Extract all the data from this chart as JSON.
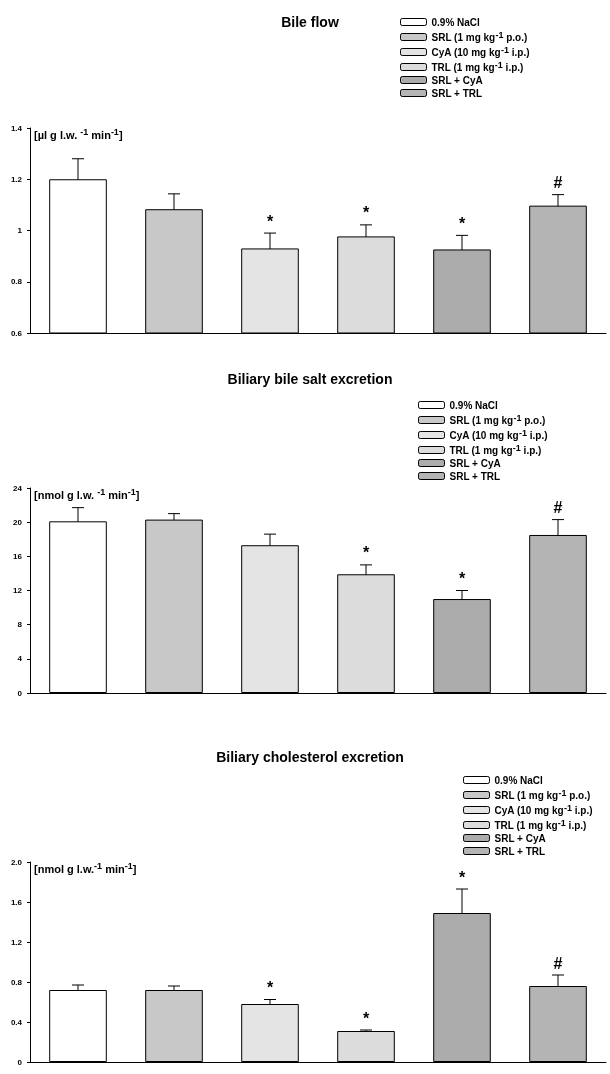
{
  "chart_data": [
    {
      "type": "bar",
      "title": "Bile flow",
      "ylabel": "[µl g l.w. $^{-1}$ min$^{-1}$]",
      "categories": [
        null,
        null,
        null,
        null,
        null,
        null
      ],
      "ylim": [
        0.6,
        1.4
      ],
      "yticks": [
        0.6,
        0.8,
        1.0,
        1.2,
        1.4
      ],
      "grid": false,
      "legend": "top right",
      "series": [
        {
          "name": "0.9% NaCl",
          "color": "#ffffff",
          "values": [
            1.2,
            null,
            null,
            null,
            null,
            null
          ],
          "errors": [
            0.08,
            null,
            null,
            null,
            null,
            null
          ]
        },
        {
          "name": "SRL (1 mg kg$^{-1}$ p.o.)",
          "color": "#c8c8c8",
          "values": [
            null,
            1.083,
            null,
            null,
            null,
            null
          ],
          "errors": [
            null,
            0.06,
            null,
            null,
            null,
            null
          ]
        },
        {
          "name": "CyA (10 mg kg$^{-1}$ i.p.)",
          "color": "#e4e4e4",
          "values": [
            null,
            null,
            0.93,
            null,
            null,
            null
          ],
          "errors": [
            null,
            null,
            0.06,
            null,
            null,
            null
          ],
          "value_labels": [
            null,
            null,
            "*",
            null,
            null,
            null
          ]
        },
        {
          "name": "TRL (1 mg kg$^{-1}$ i.p.)",
          "color": "#dcdcdc",
          "values": [
            null,
            null,
            null,
            0.977,
            null,
            null
          ],
          "errors": [
            null,
            null,
            null,
            0.045,
            null,
            null
          ],
          "value_labels": [
            null,
            null,
            null,
            "*",
            null,
            null
          ]
        },
        {
          "name": "SRL + CyA",
          "color": "#acacac",
          "values": [
            null,
            null,
            null,
            null,
            0.926,
            null
          ],
          "errors": [
            null,
            null,
            null,
            null,
            0.055,
            null
          ],
          "value_labels": [
            null,
            null,
            null,
            null,
            "*",
            null
          ]
        },
        {
          "name": "SRL + TRL",
          "color": "#b4b4b4",
          "values": [
            null,
            null,
            null,
            null,
            null,
            1.097
          ],
          "errors": [
            null,
            null,
            null,
            null,
            null,
            0.043
          ],
          "value_labels": [
            null,
            null,
            null,
            null,
            null,
            "#"
          ]
        }
      ]
    },
    {
      "type": "bar",
      "title": "Biliary bile salt excretion",
      "ylabel": "[nmol g l.w. $^{-1}$ min$^{-1}$]",
      "categories": [
        null,
        null,
        null,
        null,
        null,
        null
      ],
      "ylim": [
        0,
        24
      ],
      "yticks": [
        0,
        4,
        8,
        12,
        16,
        20,
        24
      ],
      "grid": false,
      "legend": "top right",
      "series": [
        {
          "name": "0.9% NaCl",
          "color": "#ffffff",
          "values": [
            20.1,
            null,
            null,
            null,
            null,
            null
          ],
          "errors": [
            1.6,
            null,
            null,
            null,
            null,
            null
          ]
        },
        {
          "name": "SRL (1 mg kg$^{-1}$ p.o.)",
          "color": "#c8c8c8",
          "values": [
            null,
            20.3,
            null,
            null,
            null,
            null
          ],
          "errors": [
            null,
            0.7,
            null,
            null,
            null,
            null
          ]
        },
        {
          "name": "CyA (10 mg kg$^{-1}$ i.p.)",
          "color": "#e4e4e4",
          "values": [
            null,
            null,
            17.3,
            null,
            null,
            null
          ],
          "errors": [
            null,
            null,
            1.3,
            null,
            null,
            null
          ]
        },
        {
          "name": "TRL (1 mg kg$^{-1}$ i.p.)",
          "color": "#dcdcdc",
          "values": [
            null,
            null,
            null,
            13.9,
            null,
            null
          ],
          "errors": [
            null,
            null,
            null,
            1.1,
            null,
            null
          ],
          "value_labels": [
            null,
            null,
            null,
            "*",
            null,
            null
          ]
        },
        {
          "name": "SRL + CyA",
          "color": "#acacac",
          "values": [
            null,
            null,
            null,
            null,
            11.0,
            null
          ],
          "errors": [
            null,
            null,
            null,
            null,
            1.0,
            null
          ],
          "value_labels": [
            null,
            null,
            null,
            null,
            "*",
            null
          ]
        },
        {
          "name": "SRL + TRL",
          "color": "#b4b4b4",
          "values": [
            null,
            null,
            null,
            null,
            null,
            18.5
          ],
          "errors": [
            null,
            null,
            null,
            null,
            null,
            1.8
          ],
          "value_labels": [
            null,
            null,
            null,
            null,
            null,
            "#"
          ]
        }
      ]
    },
    {
      "type": "bar",
      "title": "Biliary cholesterol excretion",
      "ylabel": "[nmol g l.w.$^{-1}$ min$^{-1}$]",
      "categories": [
        null,
        null,
        null,
        null,
        null,
        null
      ],
      "ylim": [
        0,
        2.0
      ],
      "yticks": [
        0,
        0.4,
        0.8,
        1.2,
        1.6,
        {
          "value": 2.0,
          "label": "2.0"
        }
      ],
      "grid": false,
      "legend": "top right",
      "series": [
        {
          "name": "0.9% NaCl",
          "color": "#ffffff",
          "values": [
            0.72,
            null,
            null,
            null,
            null,
            null
          ],
          "errors": [
            0.05,
            null,
            null,
            null,
            null,
            null
          ]
        },
        {
          "name": "SRL (1 mg kg$^{-1}$ p.o.)",
          "color": "#c8c8c8",
          "values": [
            null,
            0.72,
            null,
            null,
            null,
            null
          ],
          "errors": [
            null,
            0.04,
            null,
            null,
            null,
            null
          ]
        },
        {
          "name": "CyA (10 mg kg$^{-1}$ i.p.)",
          "color": "#e4e4e4",
          "values": [
            null,
            null,
            0.58,
            null,
            null,
            null
          ],
          "errors": [
            null,
            null,
            0.045,
            null,
            null,
            null
          ],
          "value_labels": [
            null,
            null,
            "*",
            null,
            null,
            null
          ]
        },
        {
          "name": "TRL (1 mg kg$^{-1}$ i.p.)",
          "color": "#dcdcdc",
          "values": [
            null,
            null,
            null,
            0.31,
            null,
            null
          ],
          "errors": [
            null,
            null,
            null,
            0.01,
            null,
            null
          ],
          "value_labels": [
            null,
            null,
            null,
            "*",
            null,
            null
          ]
        },
        {
          "name": "SRL + CyA",
          "color": "#acacac",
          "values": [
            null,
            null,
            null,
            null,
            1.49,
            null
          ],
          "errors": [
            null,
            null,
            null,
            null,
            0.24,
            null
          ],
          "value_labels": [
            null,
            null,
            null,
            null,
            "*",
            null
          ]
        },
        {
          "name": "SRL + TRL",
          "color": "#b4b4b4",
          "values": [
            null,
            null,
            null,
            null,
            null,
            0.76
          ],
          "errors": [
            null,
            null,
            null,
            null,
            null,
            0.11
          ],
          "value_labels": [
            null,
            null,
            null,
            null,
            null,
            "#"
          ]
        }
      ]
    }
  ]
}
